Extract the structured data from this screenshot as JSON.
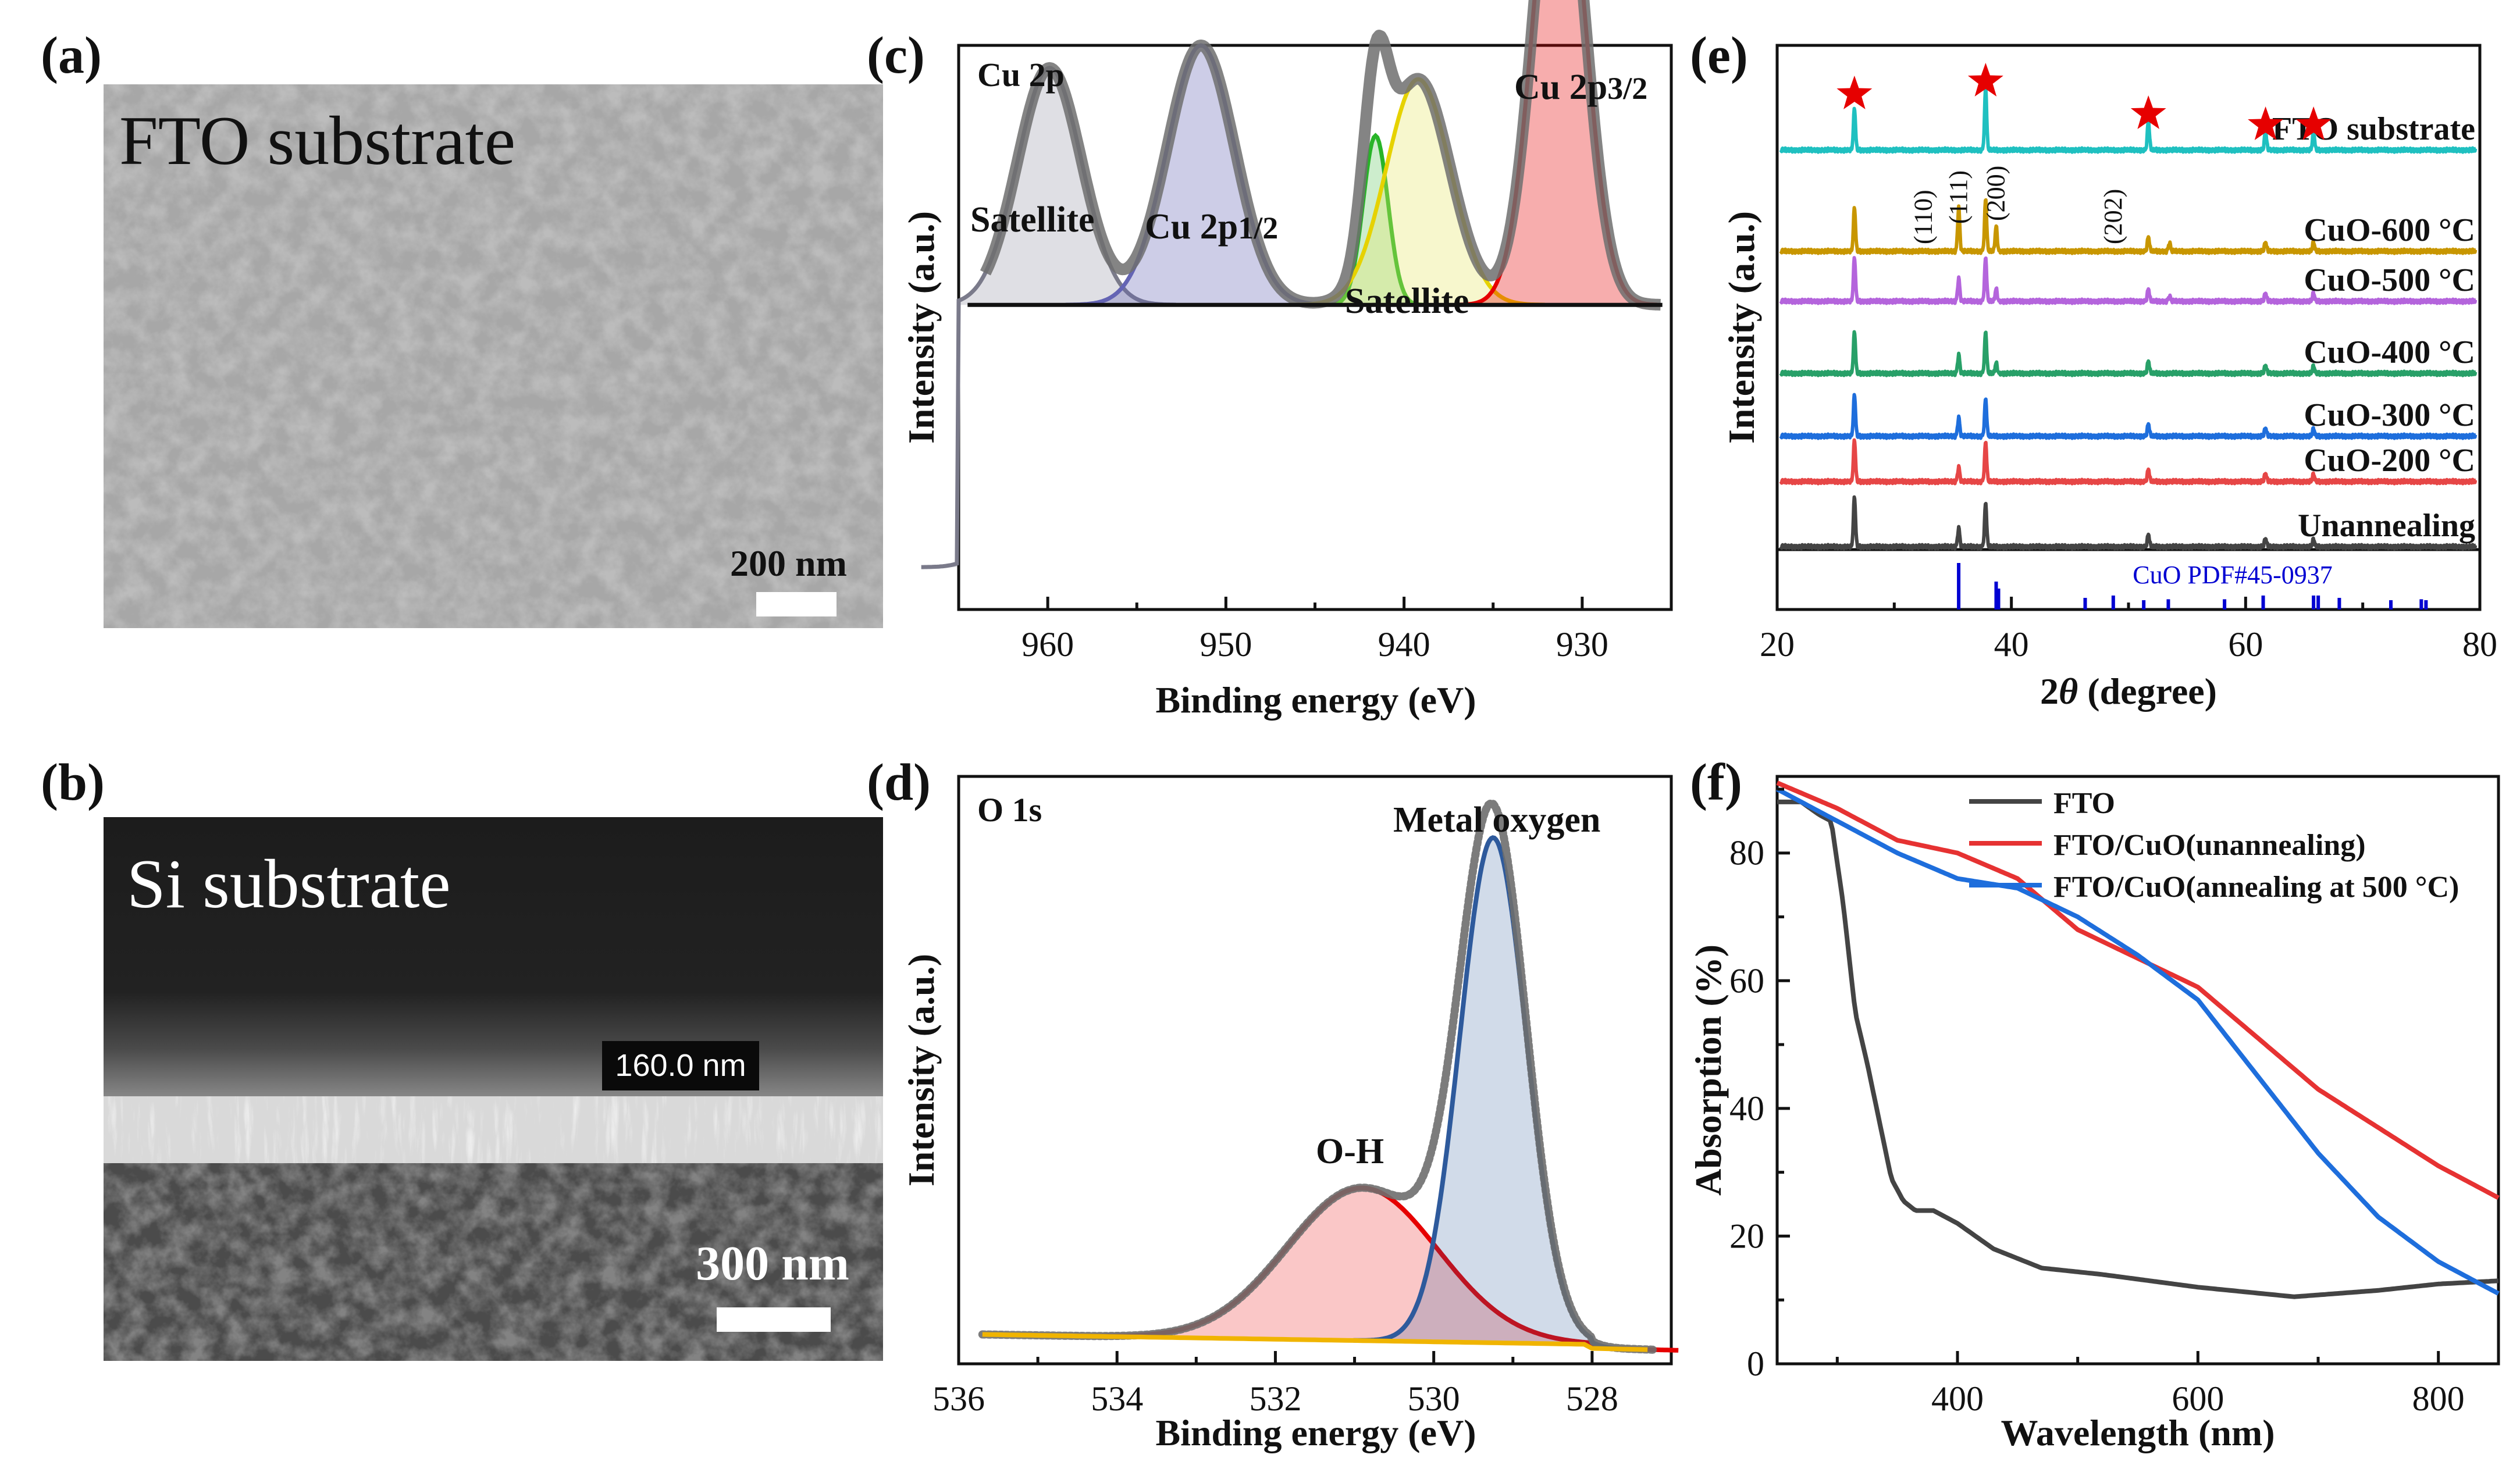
{
  "panels": {
    "a": {
      "label": "(a)",
      "title": "FTO substrate",
      "scale_bar": "200 nm"
    },
    "b": {
      "label": "(b)",
      "title": "Si substrate",
      "thickness_label": "160.0 nm",
      "scale_bar": "300 nm"
    },
    "c": {
      "label": "(c)"
    },
    "d": {
      "label": "(d)"
    },
    "e": {
      "label": "(e)"
    },
    "f": {
      "label": "(f)"
    }
  },
  "colors": {
    "raw": "#6e6e6e",
    "background": "#111111",
    "sat_high": "#9c9cac",
    "cu2p12": "#6464b4",
    "sat_green": "#64c864",
    "sat_yellow": "#e6e664",
    "cu2p32": "#e60000",
    "oh_fit": "#e60000",
    "mo_fit": "#2e5a9c",
    "baseline_o": "#f0b400",
    "fto": "#1fc0c0",
    "c600": "#c89600",
    "c500": "#b464dc",
    "c400": "#28a068",
    "c300": "#1e6edc",
    "c200": "#e64646",
    "unann": "#444444",
    "ref": "#0000d2",
    "star": "#e60000",
    "f_fto": "#444444",
    "f_unann": "#e63232",
    "f_500": "#1e6edc"
  },
  "chart_data": [
    {
      "id": "c",
      "type": "line",
      "title": "Cu 2p",
      "xlabel": "Binding energy (eV)",
      "ylabel": "Intensity (a.u.)",
      "xlim": [
        965,
        925
      ],
      "xticks": [
        960,
        950,
        940,
        930
      ],
      "xticklabels": [
        "960",
        "950",
        "940",
        "930"
      ],
      "background": {
        "x": [
          965,
          960,
          955,
          952,
          948,
          946,
          944,
          940,
          936,
          933,
          931,
          929,
          927,
          925
        ],
        "y": [
          0.54,
          0.52,
          0.48,
          0.42,
          0.33,
          0.27,
          0.25,
          0.235,
          0.22,
          0.16,
          0.1,
          0.08,
          0.075,
          0.075
        ]
      },
      "peaks": [
        {
          "name": "Satellite",
          "center": 959.9,
          "height": 0.42,
          "sigma": 1.8
        },
        {
          "name": "Cu 2p1/2",
          "center": 951.4,
          "height": 0.46,
          "sigma": 1.9
        },
        {
          "name": "Satellite (green)",
          "center": 941.6,
          "height": 0.3,
          "sigma": 0.7
        },
        {
          "name": "Satellite (yellow)",
          "center": 939.2,
          "height": 0.4,
          "sigma": 1.8
        },
        {
          "name": "Cu 2p3/2",
          "center": 931.3,
          "height": 0.88,
          "sigma": 1.4
        }
      ],
      "annotations": [
        "Satellite",
        "Cu 2p",
        "1/2",
        "Satellite",
        "Cu 2p",
        "3/2"
      ]
    },
    {
      "id": "d",
      "type": "line",
      "title": "O 1s",
      "xlabel": "Binding energy (eV)",
      "ylabel": "Intensity (a.u.)",
      "xlim": [
        536,
        527
      ],
      "xticks": [
        536,
        534,
        532,
        530,
        528
      ],
      "xticklabels": [
        "536",
        "534",
        "532",
        "530",
        "528"
      ],
      "peaks": [
        {
          "name": "O-H",
          "center": 530.9,
          "height": 0.26,
          "sigma": 0.95
        },
        {
          "name": "Metal oxygen",
          "center": 529.25,
          "height": 0.86,
          "sigma": 0.42
        }
      ],
      "annotations": [
        "O-H",
        "Metal oxygen"
      ]
    },
    {
      "id": "e",
      "type": "line",
      "xlabel": "2θ (degree)",
      "xlabel_base": "2",
      "xlabel_theta": "θ",
      "xlabel_unit": " (degree)",
      "ylabel": "Intensity (a.u.)",
      "xlim": [
        20,
        80
      ],
      "xticks": [
        20,
        40,
        60,
        80
      ],
      "xticklabels": [
        "20",
        "40",
        "60",
        "80"
      ],
      "series": [
        {
          "name": "FTO substrate",
          "peaks": [
            [
              26.6,
              1.0
            ],
            [
              37.8,
              1.5
            ],
            [
              51.7,
              0.7
            ],
            [
              61.7,
              0.45
            ],
            [
              65.8,
              0.45
            ]
          ]
        },
        {
          "name": "CuO-600 °C",
          "peaks": [
            [
              26.6,
              1.05
            ],
            [
              35.5,
              1.05
            ],
            [
              38.7,
              0.6
            ],
            [
              37.8,
              1.25
            ],
            [
              51.7,
              0.35
            ],
            [
              53.5,
              0.2
            ],
            [
              61.7,
              0.22
            ],
            [
              65.8,
              0.22
            ]
          ]
        },
        {
          "name": "CuO-500 °C",
          "peaks": [
            [
              26.6,
              1.05
            ],
            [
              35.5,
              0.55
            ],
            [
              38.7,
              0.3
            ],
            [
              37.8,
              1.05
            ],
            [
              51.7,
              0.3
            ],
            [
              53.5,
              0.12
            ],
            [
              61.7,
              0.2
            ],
            [
              65.8,
              0.2
            ]
          ]
        },
        {
          "name": "CuO-400 °C",
          "peaks": [
            [
              26.6,
              1.0
            ],
            [
              35.5,
              0.45
            ],
            [
              38.7,
              0.25
            ],
            [
              37.8,
              1.0
            ],
            [
              51.7,
              0.3
            ],
            [
              61.7,
              0.2
            ],
            [
              65.8,
              0.18
            ]
          ]
        },
        {
          "name": "CuO-300 °C",
          "peaks": [
            [
              26.6,
              1.0
            ],
            [
              35.5,
              0.45
            ],
            [
              37.8,
              0.9
            ],
            [
              51.7,
              0.3
            ],
            [
              61.7,
              0.2
            ],
            [
              65.8,
              0.18
            ]
          ]
        },
        {
          "name": "CuO-200 °C",
          "peaks": [
            [
              26.6,
              1.0
            ],
            [
              35.5,
              0.35
            ],
            [
              37.8,
              0.95
            ],
            [
              51.7,
              0.3
            ],
            [
              61.7,
              0.2
            ],
            [
              65.8,
              0.18
            ]
          ]
        },
        {
          "name": "Unannealing",
          "peaks": [
            [
              26.6,
              1.2
            ],
            [
              35.5,
              0.45
            ],
            [
              37.8,
              1.05
            ],
            [
              51.7,
              0.3
            ],
            [
              61.7,
              0.2
            ],
            [
              65.8,
              0.18
            ]
          ]
        }
      ],
      "stars_x": [
        26.6,
        37.8,
        51.7,
        61.7,
        65.8
      ],
      "hkl": [
        {
          "x": 32.5,
          "text": "(110)"
        },
        {
          "x": 35.5,
          "text": "(111)"
        },
        {
          "x": 38.7,
          "text": "(200)"
        },
        {
          "x": 48.7,
          "text": "(202)"
        }
      ],
      "reference": {
        "name": "CuO PDF#45-0937",
        "lines": [
          [
            35.5,
            1.0
          ],
          [
            38.7,
            0.6
          ],
          [
            38.9,
            0.45
          ],
          [
            46.3,
            0.25
          ],
          [
            48.7,
            0.3
          ],
          [
            51.3,
            0.2
          ],
          [
            53.4,
            0.22
          ],
          [
            58.2,
            0.22
          ],
          [
            61.5,
            0.3
          ],
          [
            65.8,
            0.3
          ],
          [
            66.2,
            0.3
          ],
          [
            68.0,
            0.25
          ],
          [
            72.4,
            0.2
          ],
          [
            75.0,
            0.22
          ],
          [
            75.4,
            0.2
          ]
        ]
      }
    },
    {
      "id": "f",
      "type": "line",
      "xlabel": "Wavelength (nm)",
      "ylabel": "Absorption (%)",
      "xlim": [
        250,
        850
      ],
      "ylim": [
        0,
        92
      ],
      "xticks": [
        400,
        600,
        800
      ],
      "xticklabels": [
        "400",
        "600",
        "800"
      ],
      "yticks": [
        0,
        20,
        40,
        60,
        80
      ],
      "yticklabels": [
        "0",
        "20",
        "40",
        "60",
        "80"
      ],
      "legend_position": "top-right",
      "series": [
        {
          "name": "FTO",
          "x": [
            250,
            270,
            285,
            295,
            305,
            315,
            325,
            335,
            345,
            355,
            365,
            380,
            400,
            430,
            470,
            520,
            600,
            680,
            750,
            800,
            850
          ],
          "y": [
            88,
            88,
            86,
            85,
            72,
            55,
            47,
            38,
            29,
            25.5,
            24,
            24,
            22,
            18,
            15,
            14,
            12,
            10.5,
            11.5,
            12.5,
            13
          ]
        },
        {
          "name": "FTO/CuO(unannealing)",
          "x": [
            250,
            300,
            350,
            400,
            450,
            500,
            550,
            600,
            650,
            700,
            750,
            800,
            850
          ],
          "y": [
            91,
            87,
            82,
            80,
            76,
            68,
            63.5,
            59,
            51,
            43,
            37,
            31,
            26
          ]
        },
        {
          "name": "FTO/CuO(annealing at 500 °C)",
          "x": [
            250,
            300,
            350,
            400,
            450,
            500,
            550,
            600,
            650,
            700,
            750,
            800,
            850
          ],
          "y": [
            90,
            85,
            80,
            76,
            74.5,
            70,
            64,
            57,
            45,
            33,
            23,
            16,
            11
          ]
        }
      ]
    }
  ]
}
